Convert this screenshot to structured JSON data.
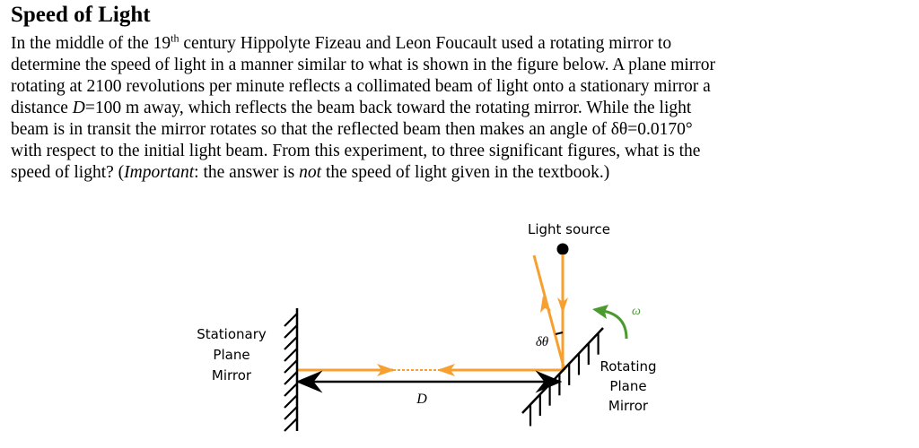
{
  "title": "Speed of Light",
  "lines": [
    [
      {
        "t": "In the middle of the 19"
      },
      {
        "t": "th",
        "sup": true
      },
      {
        "t": " century Hippolyte Fizeau and Leon Foucault used a rotating mirror to"
      }
    ],
    [
      {
        "t": "determine the speed of light in a manner similar to what is shown in the figure below.  A plane mirror"
      }
    ],
    [
      {
        "t": "rotating at 2100 revolutions per minute reflects a collimated beam of light onto a stationary mirror a"
      }
    ],
    [
      {
        "t": "distance "
      },
      {
        "t": "D",
        "i": true
      },
      {
        "t": "=100 m away, which reflects the beam back toward the rotating mirror.  While the light"
      }
    ],
    [
      {
        "t": "beam is in transit the mirror rotates so that the reflected beam then makes an angle of δθ=0.0170°"
      }
    ],
    [
      {
        "t": "with respect to the initial light beam.  From this experiment, to three significant figures, what is the"
      }
    ],
    [
      {
        "t": "speed of light?  ("
      },
      {
        "t": "Important",
        "i": true
      },
      {
        "t": ": the answer is "
      },
      {
        "t": "not",
        "i": true
      },
      {
        "t": " the speed of light given in the textbook.)"
      }
    ]
  ],
  "diagram": {
    "light_source": "Light source",
    "stationary": [
      "Stationary",
      "Plane",
      "Mirror"
    ],
    "rotating": [
      "Rotating",
      "Plane",
      "Mirror"
    ],
    "distance": "D",
    "angle": "δθ",
    "omega": "ω",
    "beam_color": "#f7a030",
    "omega_color": "#4a9a30"
  }
}
